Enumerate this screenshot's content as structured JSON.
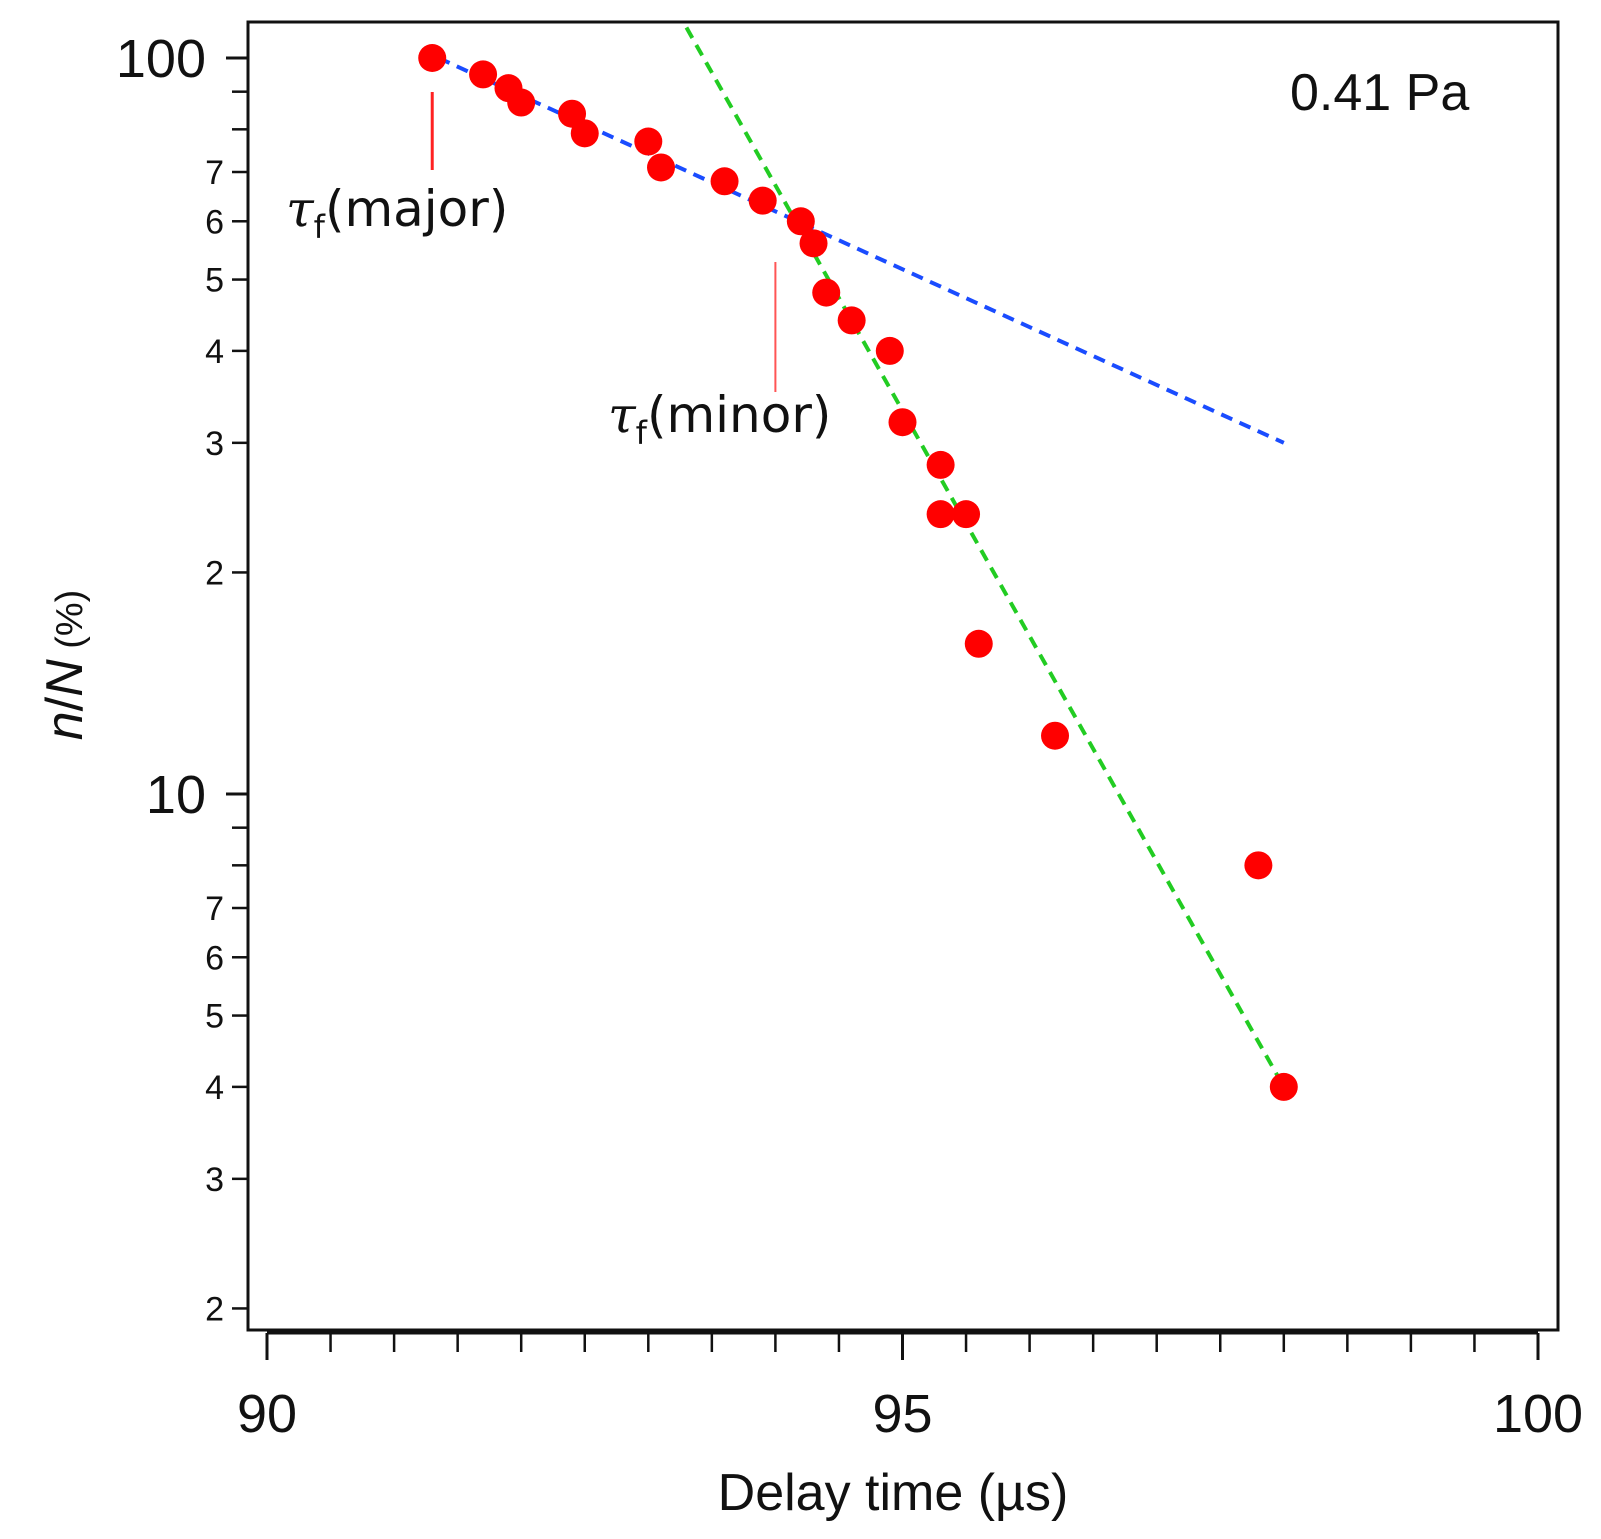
{
  "chart_data": {
    "type": "scatter",
    "title": "",
    "xlabel": "Delay time (µs)",
    "ylabel": {
      "n": "n",
      "slash": "/",
      "N": "N",
      "unit": " (%)"
    },
    "xlim": [
      90,
      100
    ],
    "ylim": [
      2,
      100
    ],
    "yscale": "log",
    "x_major_ticks": [
      90,
      95,
      100
    ],
    "x_major_tick_labels": [
      "90",
      "95",
      "100"
    ],
    "x_minor_step": 0.5,
    "y_major_ticks": [
      10,
      100
    ],
    "y_major_tick_labels": [
      "10",
      "100"
    ],
    "y_minor_ticks": [
      2,
      3,
      4,
      5,
      6,
      7,
      8,
      9,
      20,
      30,
      40,
      50,
      60,
      70,
      80,
      90
    ],
    "y_minor_tick_labels": [
      "2",
      "3",
      "4",
      "5",
      "6",
      "7",
      "",
      "",
      "2",
      "3",
      "4",
      "5",
      "6",
      "7",
      "",
      ""
    ],
    "series": [
      {
        "name": "data",
        "color": "#ff0000",
        "x": [
          91.3,
          91.7,
          91.9,
          92.0,
          92.4,
          92.5,
          93.0,
          93.1,
          93.6,
          93.9,
          94.2,
          94.3,
          94.4,
          94.6,
          94.9,
          95.0,
          95.3,
          95.3,
          95.5,
          95.6,
          96.2,
          97.8,
          98.0
        ],
        "y": [
          100,
          95,
          91,
          87,
          84,
          79,
          77,
          71,
          68,
          64,
          60,
          56,
          48,
          44,
          40,
          32,
          28,
          24,
          24,
          16,
          12,
          8,
          4
        ]
      }
    ],
    "fit_lines": [
      {
        "name": "major",
        "color": "#1a4cff",
        "x": [
          91.35,
          98.0
        ],
        "y": [
          100,
          30
        ]
      },
      {
        "name": "minor",
        "color": "#22cc22",
        "x": [
          93.3,
          98.0
        ],
        "y": [
          110,
          4
        ]
      }
    ],
    "annotations": [
      {
        "name": "tau-major",
        "tau": "τ",
        "sub": "f",
        "label": "(major)",
        "x": 91.3
      },
      {
        "name": "tau-minor",
        "tau": "τ",
        "sub": "f",
        "label": "(minor)",
        "x": 94.0
      }
    ],
    "pressure_label": "0.41 Pa"
  }
}
